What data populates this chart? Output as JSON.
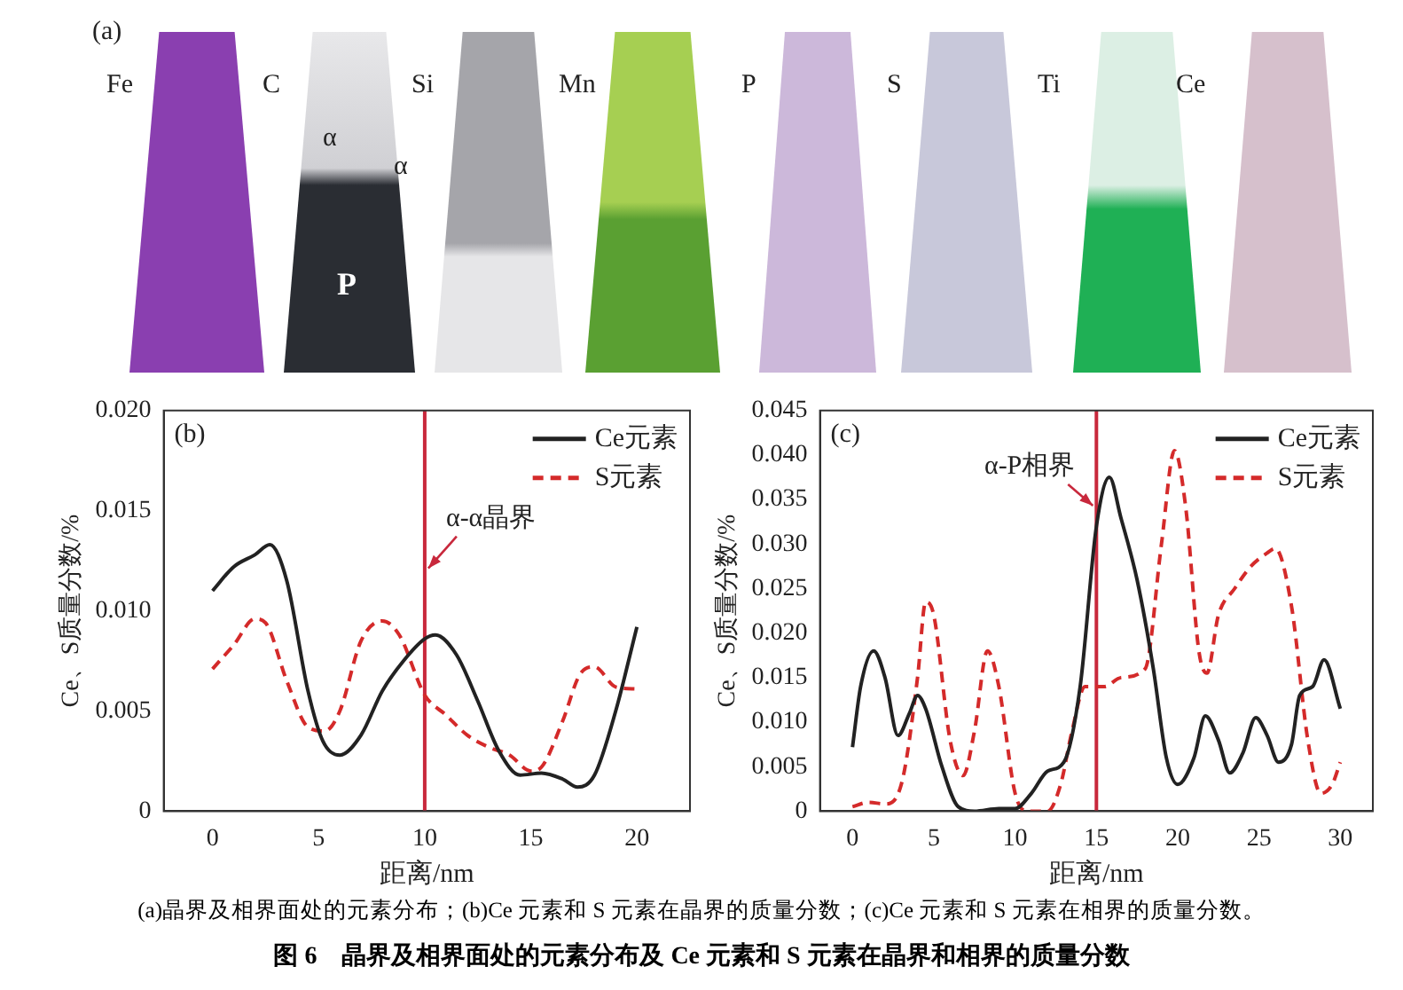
{
  "chart_data": [
    {
      "type": "other",
      "title": "图 6　晶界及相界面处的元素分布及 Ce 元素和 S 元素在晶界和相界的质量分数",
      "annotations": [
        "(a)",
        "Fe",
        "C",
        "Si",
        "Mn",
        "P",
        "S",
        "Ti",
        "Ce",
        "α",
        "α",
        "P",
        "(a)晶界及相界面处的元素分布；(b)Ce 元素和 S 元素在晶界的质量分数；(c)Ce 元素和 S 元素在相界的质量分数。"
      ]
    },
    {
      "type": "line",
      "xlabel": "距离/nm",
      "ylabel": "Ce、S质量分数/%",
      "annotations": [
        "(b)"
      ],
      "xlim": [
        -2.3,
        22.5
      ],
      "xticks": [
        0,
        5,
        10,
        15,
        20
      ],
      "ylim": [
        0,
        0.02
      ],
      "yticks": [
        0,
        0.005,
        {
          "value": 0.01,
          "label": "0.010"
        },
        0.015,
        {
          "value": 0.02,
          "label": "0.020"
        }
      ],
      "grid": false,
      "legend": "top right",
      "marker": "none",
      "ref_lines": [
        {
          "axis": "x",
          "value": 10,
          "label": "α-α晶界",
          "color": "#c8283c"
        }
      ],
      "series": [
        {
          "name": "Ce元素",
          "color": "#222222",
          "line_style": "solid",
          "x": [
            0,
            1,
            2,
            2.7,
            3.5,
            4.5,
            5.2,
            6,
            7,
            8,
            9,
            10,
            10.5,
            11.5,
            12.5,
            13.5,
            14.5,
            15.5,
            16.5,
            17.2,
            18,
            19,
            20
          ],
          "values": [
            0.011,
            0.0122,
            0.0128,
            0.0133,
            0.0115,
            0.006,
            0.0035,
            0.0028,
            0.0038,
            0.006,
            0.0075,
            0.0086,
            0.0088,
            0.0078,
            0.0055,
            0.003,
            0.0018,
            0.0019,
            0.0016,
            0.0012,
            0.0018,
            0.005,
            0.0092
          ]
        },
        {
          "name": "S元素",
          "color": "#d42a2a",
          "line_style": "dashed",
          "x": [
            0,
            1,
            2,
            2.5,
            3.5,
            4.5,
            5.3,
            6,
            7,
            8,
            8.8,
            10,
            11,
            12,
            13,
            14,
            15,
            15.5,
            16.5,
            17.3,
            18,
            19,
            20
          ],
          "values": [
            0.0071,
            0.0083,
            0.0096,
            0.0094,
            0.0065,
            0.0042,
            0.004,
            0.005,
            0.0085,
            0.0095,
            0.0088,
            0.0058,
            0.0048,
            0.0038,
            0.0032,
            0.0028,
            0.002,
            0.0022,
            0.0045,
            0.0068,
            0.0072,
            0.0062,
            0.0061
          ]
        }
      ]
    },
    {
      "type": "line",
      "xlabel": "距离/nm",
      "ylabel": "Ce、S质量分数/%",
      "annotations": [
        "(c)"
      ],
      "xlim": [
        -2,
        32
      ],
      "xticks": [
        0,
        5,
        10,
        15,
        20,
        25,
        30
      ],
      "ylim": [
        0,
        0.045
      ],
      "yticks": [
        0,
        0.005,
        {
          "value": 0.01,
          "label": "0.010"
        },
        0.015,
        {
          "value": 0.02,
          "label": "0.020"
        },
        0.025,
        {
          "value": 0.03,
          "label": "0.030"
        },
        0.035,
        {
          "value": 0.04,
          "label": "0.040"
        },
        0.045
      ],
      "grid": false,
      "legend": "top right",
      "marker": "none",
      "ref_lines": [
        {
          "axis": "x",
          "value": 15,
          "label": "α-P相界",
          "color": "#c8283c"
        }
      ],
      "series": [
        {
          "name": "Ce元素",
          "color": "#222222",
          "line_style": "solid",
          "x": [
            0,
            0.5,
            1.3,
            2,
            2.8,
            3.5,
            4,
            4.5,
            5.5,
            6.5,
            7.5,
            9,
            10,
            11,
            12,
            13,
            14,
            15,
            15.8,
            16.5,
            17.5,
            18.5,
            19.3,
            20,
            21,
            21.7,
            22.5,
            23.2,
            24,
            24.8,
            25.5,
            26.2,
            27,
            27.5,
            28.3,
            29,
            30
          ],
          "values": [
            0.0072,
            0.014,
            0.018,
            0.015,
            0.0085,
            0.011,
            0.013,
            0.0115,
            0.005,
            0.0005,
            0,
            0.0003,
            0.0003,
            0.002,
            0.0045,
            0.0055,
            0.014,
            0.032,
            0.0375,
            0.033,
            0.026,
            0.016,
            0.006,
            0.003,
            0.006,
            0.0107,
            0.008,
            0.0043,
            0.0065,
            0.0105,
            0.0085,
            0.0055,
            0.0075,
            0.013,
            0.014,
            0.017,
            0.0115
          ]
        },
        {
          "name": "S元素",
          "color": "#d42a2a",
          "line_style": "dashed",
          "x": [
            0,
            1,
            2,
            3,
            4,
            4.5,
            5,
            6,
            6.8,
            7.5,
            8.3,
            9,
            10,
            10.8,
            12,
            12.8,
            13.5,
            14.3,
            15.5,
            16.5,
            18,
            19,
            19.8,
            20.5,
            21.3,
            21.8,
            22.5,
            23.5,
            24.5,
            25.5,
            26,
            27,
            28,
            28.8,
            29.5,
            30
          ],
          "values": [
            0.0005,
            0.001,
            0.0008,
            0.003,
            0.015,
            0.0235,
            0.022,
            0.008,
            0.004,
            0.009,
            0.018,
            0.014,
            0.002,
            0,
            0,
            0.003,
            0.009,
            0.014,
            0.014,
            0.015,
            0.016,
            0.03,
            0.0405,
            0.034,
            0.018,
            0.0155,
            0.022,
            0.025,
            0.0275,
            0.029,
            0.0295,
            0.023,
            0.008,
            0.002,
            0.003,
            0.0055
          ]
        }
      ]
    }
  ]
}
